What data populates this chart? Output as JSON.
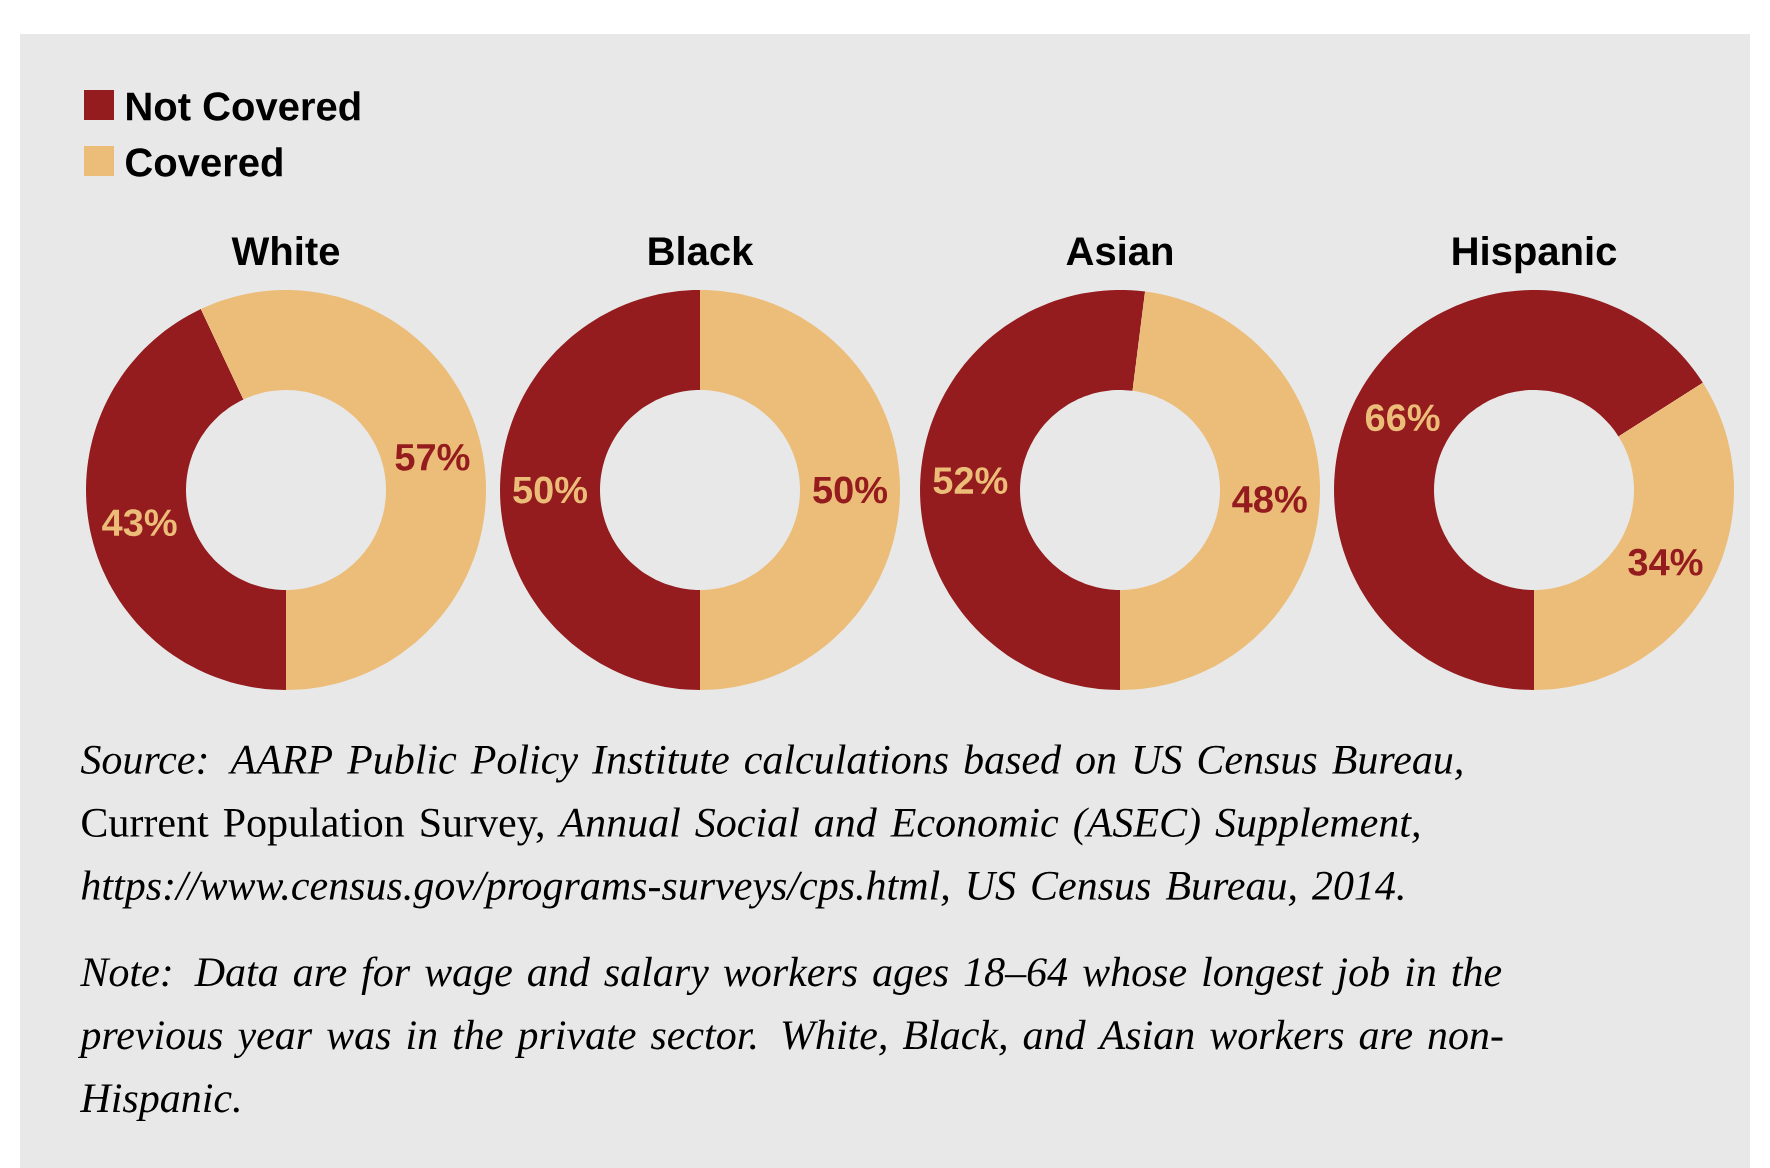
{
  "chart_data": [
    {
      "type": "donut",
      "title": "White",
      "categories": [
        "Not Covered",
        "Covered"
      ],
      "values": [
        43,
        57
      ],
      "value_labels": [
        "43%",
        "57%"
      ],
      "colors": [
        "#941b1e",
        "#ebbd78"
      ],
      "legend": "top left",
      "annotations": [
        "*Source: AARP Public Policy Institute calculations based on US Census Bureau,* Current Population Survey, *Annual Social and Economic (ASEC) Supplement, https://www.census.gov/programs-surveys/cps.html, US Census Bureau, 2014.*",
        "Note: Data are for wage and salary workers ages 18–64 whose longest job in the previous year was in the private sector. White, Black, and Asian workers are non-Hispanic."
      ]
    },
    {
      "type": "donut",
      "title": "Black",
      "categories": [
        null,
        null
      ],
      "values": [
        50,
        50
      ],
      "value_labels": [
        "50%",
        "50%"
      ],
      "colors": [
        "#941b1e",
        "#ebbd78"
      ]
    },
    {
      "type": "donut",
      "title": "Asian",
      "categories": [
        null,
        null
      ],
      "values": [
        52,
        48
      ],
      "value_labels": [
        "52%",
        "48%"
      ],
      "colors": [
        "#941b1e",
        "#ebbd78"
      ]
    },
    {
      "type": "donut",
      "title": "Hispanic",
      "categories": [
        null,
        null
      ],
      "values": [
        66,
        34
      ],
      "value_labels": [
        "66%",
        "34%"
      ],
      "colors": [
        "#941b1e",
        "#ebbd78"
      ]
    }
  ]
}
